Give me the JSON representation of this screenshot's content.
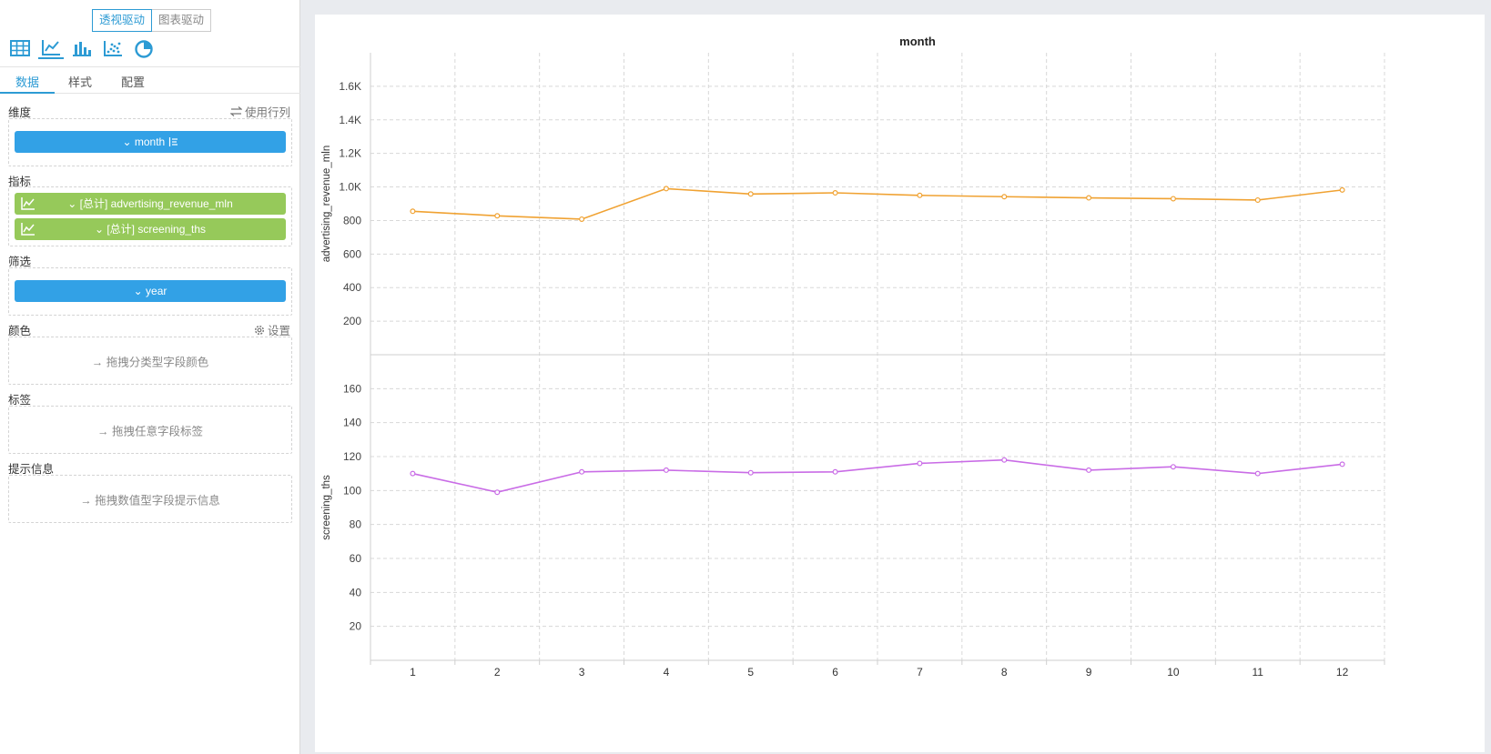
{
  "panel": {
    "modes": [
      "透视驱动",
      "图表驱动"
    ],
    "chart_type_icons": [
      "table-icon",
      "line-chart-icon",
      "bar-chart-icon",
      "scatter-chart-icon",
      "pie-chart-icon"
    ],
    "tabs": [
      "数据",
      "样式",
      "配置"
    ],
    "dimension": {
      "label": "维度",
      "action": "使用行列",
      "field": "month"
    },
    "metrics": {
      "label": "指标",
      "fields": [
        "[总计] advertising_revenue_mln",
        "[总计] screening_ths"
      ]
    },
    "filter": {
      "label": "筛选",
      "field": "year"
    },
    "color": {
      "label": "颜色",
      "action": "设置",
      "hint": "拖拽分类型字段颜色"
    },
    "tag": {
      "label": "标签",
      "hint": "拖拽任意字段标签"
    },
    "tooltip": {
      "label": "提示信息",
      "hint": "拖拽数值型字段提示信息"
    }
  },
  "colors": {
    "accent": "#2d9bd4",
    "dim_pill": "#32a1e6",
    "metric_pill": "#96c95a",
    "series1": "#f0a232",
    "series2": "#c96ce6"
  },
  "chart_data": {
    "type": "line",
    "title": "month",
    "categories": [
      "1",
      "2",
      "3",
      "4",
      "5",
      "6",
      "7",
      "8",
      "9",
      "10",
      "11",
      "12"
    ],
    "panels": [
      {
        "ylabel": "advertising_revenue_mln",
        "yticks": [
          "200",
          "400",
          "600",
          "800",
          "1.0K",
          "1.2K",
          "1.4K",
          "1.6K"
        ],
        "ylim": [
          0,
          1800
        ],
        "series": [
          {
            "values": [
              855,
              828,
              808,
              990,
              958,
              965,
              950,
              942,
              935,
              930,
              922,
              982
            ]
          }
        ]
      },
      {
        "ylabel": "screening_ths",
        "yticks": [
          "20",
          "40",
          "60",
          "80",
          "100",
          "120",
          "140",
          "160"
        ],
        "ylim": [
          0,
          180
        ],
        "series": [
          {
            "values": [
              110,
              99,
              111,
              112,
              110.5,
              111,
              116,
              118,
              112,
              114,
              110,
              115.5
            ]
          }
        ]
      }
    ],
    "grid": true
  }
}
